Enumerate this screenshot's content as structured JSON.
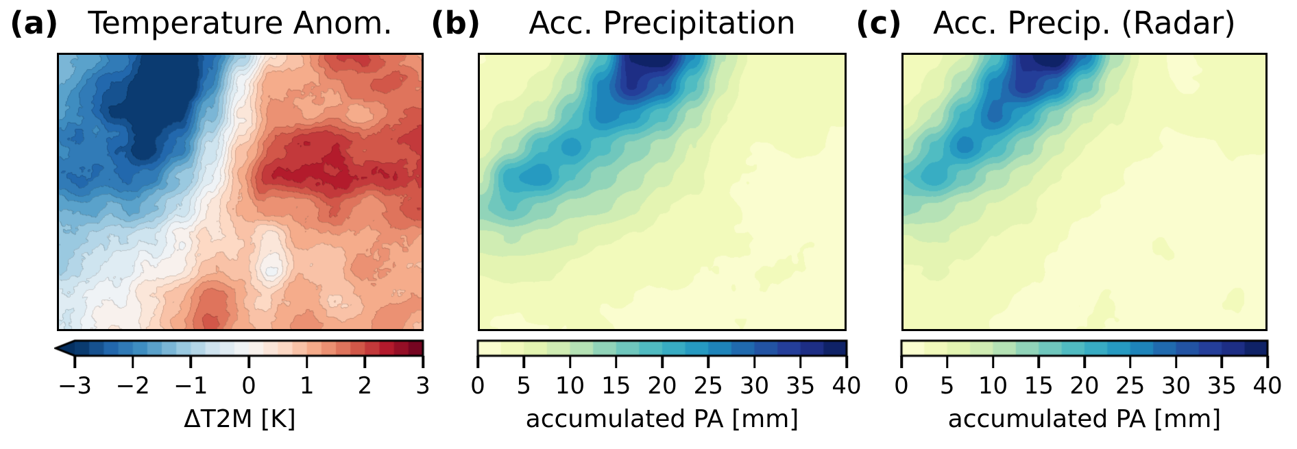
{
  "figure": {
    "background": "#ffffff",
    "text_color": "#000000"
  },
  "colormaps": {
    "RdBu_r": [
      "#053061",
      "#2166ac",
      "#4393c3",
      "#92c5de",
      "#d1e5f0",
      "#f7f7f7",
      "#fddbc7",
      "#f4a582",
      "#d6604d",
      "#b2182b",
      "#67001f"
    ],
    "YlGnBu": [
      "#ffffd9",
      "#edf8b1",
      "#c7e9b4",
      "#7fcdbb",
      "#41b6c4",
      "#1d91c0",
      "#225ea8",
      "#253494",
      "#081d58"
    ]
  },
  "chart_data": [
    {
      "type": "filled_contour_map",
      "id": "a",
      "index_label": "(a)",
      "title": "Temperature Anom.",
      "colormap": "RdBu_r",
      "levels": {
        "min": -3,
        "max": 3,
        "step": 0.25,
        "extend": "min"
      },
      "colorbar": {
        "label": "ΔT2M [K]",
        "tick_values": [
          -3,
          -2,
          -1,
          0,
          1,
          2,
          3
        ],
        "tick_labels": [
          "−3",
          "−2",
          "−1",
          "0",
          "1",
          "2",
          "3"
        ]
      },
      "texture": {
        "noise_amplitude": 0.6,
        "noise_scale": 9,
        "octaves": 5,
        "seed": 11,
        "contour_lines": true
      },
      "grid": {
        "values": [
          [
            -1.3,
            -1.6,
            -2.2,
            -2.9,
            -3.2,
            -2.4,
            -0.9,
            0.7,
            1.3,
            1.6,
            1.9,
            1.5,
            1.3
          ],
          [
            -1.5,
            -1.9,
            -2.5,
            -3.1,
            -3.3,
            -2.0,
            -0.2,
            1.0,
            1.2,
            1.4,
            1.8,
            2.0,
            1.6
          ],
          [
            -1.7,
            -2.1,
            -2.7,
            -3.2,
            -2.7,
            -1.2,
            0.4,
            1.2,
            1.1,
            1.3,
            1.2,
            1.6,
            1.9
          ],
          [
            -1.9,
            -2.3,
            -2.6,
            -3.0,
            -2.2,
            -0.6,
            0.9,
            1.7,
            2.0,
            1.9,
            1.8,
            2.0,
            2.2
          ],
          [
            -2.1,
            -2.4,
            -2.3,
            -2.0,
            -1.3,
            -0.1,
            1.1,
            2.1,
            2.3,
            2.2,
            2.1,
            2.3,
            2.3
          ],
          [
            -1.7,
            -1.9,
            -1.6,
            -1.1,
            -0.5,
            0.4,
            1.1,
            1.3,
            1.2,
            1.5,
            1.3,
            1.6,
            1.9
          ],
          [
            -1.3,
            -1.1,
            -0.9,
            -0.5,
            0.2,
            0.8,
            0.8,
            0.3,
            1.0,
            1.2,
            1.1,
            1.3,
            1.2
          ],
          [
            -0.9,
            -0.7,
            -0.4,
            0.1,
            0.6,
            1.0,
            1.1,
            0.0,
            0.7,
            1.1,
            1.3,
            1.1,
            1.3
          ],
          [
            -0.7,
            -0.35,
            0.0,
            0.5,
            1.1,
            1.5,
            1.1,
            0.9,
            1.0,
            0.9,
            1.2,
            1.1,
            1.4
          ],
          [
            -0.5,
            -0.2,
            0.1,
            0.6,
            1.5,
            2.0,
            1.4,
            1.1,
            1.2,
            1.0,
            1.1,
            1.3,
            1.2
          ]
        ]
      }
    },
    {
      "type": "filled_contour_map",
      "id": "b",
      "index_label": "(b)",
      "title": "Acc. Precipitation",
      "colormap": "YlGnBu",
      "levels": {
        "min": 0,
        "max": 40,
        "step": 2.5,
        "extend": "neither"
      },
      "colorbar": {
        "label": "accumulated PA [mm]",
        "tick_values": [
          0,
          5,
          10,
          15,
          20,
          25,
          30,
          35,
          40
        ],
        "tick_labels": [
          "0",
          "5",
          "10",
          "15",
          "20",
          "25",
          "30",
          "35",
          "40"
        ]
      },
      "texture": {
        "noise_amplitude": 1.7,
        "noise_scale": 5.5,
        "octaves": 4,
        "seed": 23,
        "contour_lines": false
      },
      "grid": {
        "values": [
          [
            3,
            3,
            4,
            8,
            18,
            38,
            42,
            26,
            10,
            4,
            3,
            3,
            3
          ],
          [
            3,
            4,
            6,
            12,
            26,
            36,
            30,
            18,
            8,
            3,
            3,
            3,
            3
          ],
          [
            4,
            6,
            10,
            18,
            26,
            24,
            18,
            11,
            5,
            3,
            3,
            3,
            3
          ],
          [
            6,
            11,
            20,
            24,
            18,
            14,
            11,
            7,
            4,
            3,
            3,
            3,
            2
          ],
          [
            10,
            22,
            24,
            17,
            13,
            11,
            8,
            5,
            3,
            3,
            2,
            2,
            2
          ],
          [
            15,
            18,
            14,
            11,
            11,
            8,
            5,
            4,
            3,
            2,
            2,
            2,
            2
          ],
          [
            9,
            10,
            9,
            8,
            6,
            5,
            4,
            3,
            2,
            2,
            2,
            2,
            2
          ],
          [
            6,
            6,
            6,
            5,
            4,
            4,
            3,
            2,
            2,
            2,
            2,
            2,
            2
          ],
          [
            4,
            4,
            4,
            4,
            3,
            3,
            2,
            2,
            2,
            2,
            2,
            2,
            2
          ],
          [
            3,
            3,
            3,
            3,
            3,
            2,
            2,
            2,
            2,
            2,
            2,
            2,
            2
          ]
        ]
      }
    },
    {
      "type": "filled_contour_map",
      "id": "c",
      "index_label": "(c)",
      "title": "Acc. Precip. (Radar)",
      "colormap": "YlGnBu",
      "levels": {
        "min": 0,
        "max": 40,
        "step": 2.5,
        "extend": "neither"
      },
      "colorbar": {
        "label": "accumulated PA [mm]",
        "tick_values": [
          0,
          5,
          10,
          15,
          20,
          25,
          30,
          35,
          40
        ],
        "tick_labels": [
          "0",
          "5",
          "10",
          "15",
          "20",
          "25",
          "30",
          "35",
          "40"
        ]
      },
      "texture": {
        "noise_amplitude": 1.7,
        "noise_scale": 5.5,
        "octaves": 4,
        "seed": 37,
        "contour_lines": false
      },
      "grid": {
        "values": [
          [
            3,
            4,
            7,
            18,
            36,
            42,
            28,
            12,
            5,
            3,
            3,
            3,
            3
          ],
          [
            4,
            6,
            12,
            26,
            34,
            28,
            16,
            8,
            4,
            3,
            3,
            3,
            3
          ],
          [
            6,
            10,
            20,
            28,
            22,
            14,
            8,
            5,
            3,
            3,
            3,
            4,
            3
          ],
          [
            11,
            18,
            26,
            20,
            13,
            8,
            5,
            3,
            3,
            2,
            2,
            3,
            3
          ],
          [
            18,
            22,
            16,
            11,
            8,
            5,
            3,
            3,
            2,
            2,
            2,
            2,
            2
          ],
          [
            14,
            12,
            9,
            7,
            5,
            3,
            3,
            2,
            2,
            2,
            2,
            2,
            2
          ],
          [
            7,
            8,
            7,
            5,
            4,
            3,
            2,
            2,
            2,
            2,
            2,
            2,
            2
          ],
          [
            5,
            5,
            5,
            4,
            3,
            2,
            2,
            2,
            2,
            2,
            2,
            2,
            2
          ],
          [
            4,
            4,
            3,
            3,
            2,
            2,
            2,
            2,
            2,
            2,
            2,
            3,
            2
          ],
          [
            3,
            3,
            3,
            2,
            2,
            2,
            2,
            2,
            2,
            2,
            2,
            2,
            2
          ]
        ]
      }
    }
  ]
}
